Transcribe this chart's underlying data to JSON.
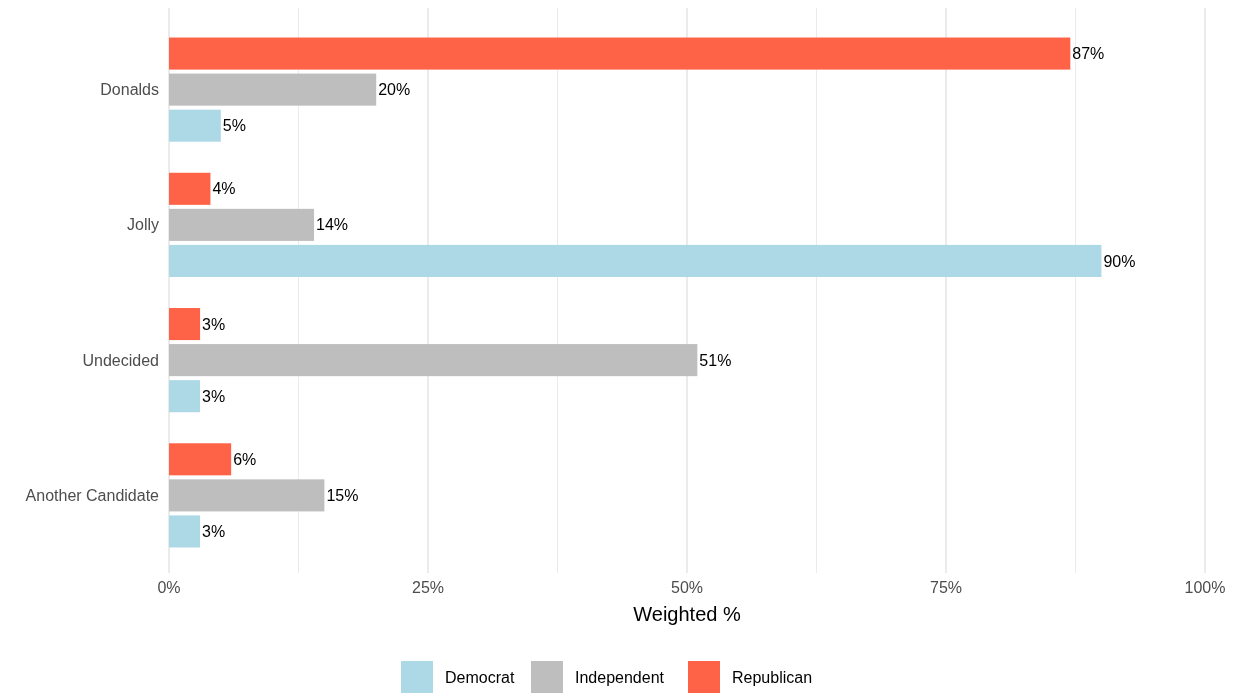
{
  "chart_data": {
    "type": "bar",
    "orientation": "horizontal",
    "xlabel": "Weighted %",
    "categories": [
      "Donalds",
      "Jolly",
      "Undecided",
      "Another Candidate"
    ],
    "series": [
      {
        "name": "Democrat",
        "color": "#add8e6",
        "values": [
          5,
          90,
          3,
          3
        ],
        "value_labels": [
          "5%",
          "90%",
          "3%",
          "3%"
        ]
      },
      {
        "name": "Independent",
        "color": "#bebebe",
        "values": [
          20,
          14,
          51,
          15
        ],
        "value_labels": [
          "20%",
          "14%",
          "51%",
          "15%"
        ]
      },
      {
        "name": "Republican",
        "color": "#ff6347",
        "values": [
          87,
          4,
          3,
          6
        ],
        "value_labels": [
          "87%",
          "4%",
          "3%",
          "6%"
        ]
      }
    ],
    "xlim": [
      0,
      100
    ],
    "xticks": [
      {
        "value": 0,
        "label": "0%"
      },
      {
        "value": 12.5,
        "label": null
      },
      {
        "value": 25,
        "label": "25%"
      },
      {
        "value": 37.5,
        "label": null
      },
      {
        "value": 50,
        "label": "50%"
      },
      {
        "value": 62.5,
        "label": null
      },
      {
        "value": 75,
        "label": "75%"
      },
      {
        "value": 87.5,
        "label": null
      },
      {
        "value": 100,
        "label": "100%"
      }
    ],
    "grid": "x",
    "legend": "bottom"
  }
}
